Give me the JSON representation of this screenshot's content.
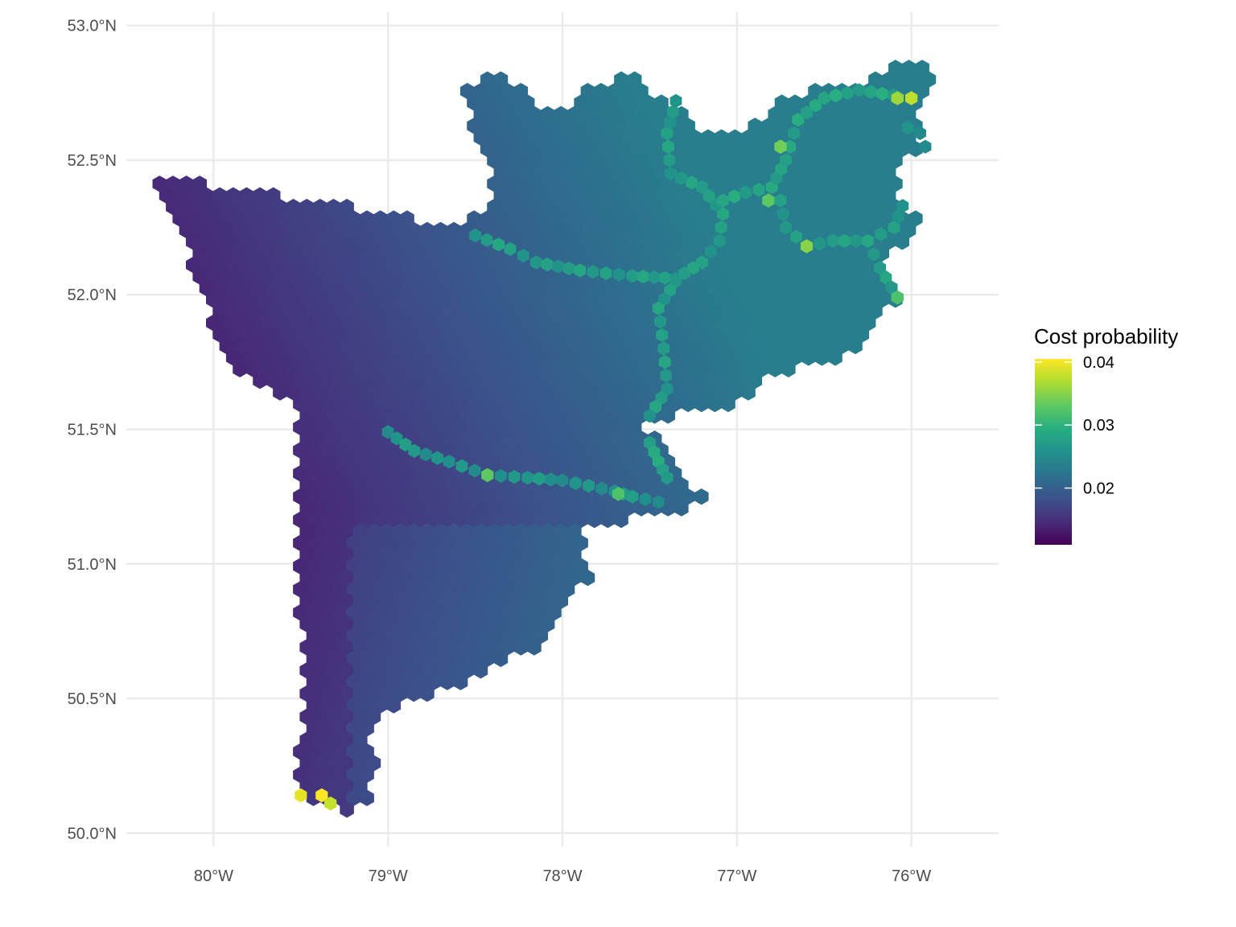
{
  "chart_data": {
    "type": "heatmap",
    "geometry": "hexbin-map",
    "xlim": [
      -80.5,
      -75.5
    ],
    "ylim": [
      49.95,
      53.05
    ],
    "x_ticks": [
      {
        "value": -80,
        "label": "80°W"
      },
      {
        "value": -79,
        "label": "79°W"
      },
      {
        "value": -78,
        "label": "78°W"
      },
      {
        "value": -77,
        "label": "77°W"
      },
      {
        "value": -76,
        "label": "76°W"
      }
    ],
    "y_ticks": [
      {
        "value": 50.0,
        "label": "50.0°N"
      },
      {
        "value": 50.5,
        "label": "50.5°N"
      },
      {
        "value": 51.0,
        "label": "51.0°N"
      },
      {
        "value": 51.5,
        "label": "51.5°N"
      },
      {
        "value": 52.0,
        "label": "52.0°N"
      },
      {
        "value": 52.5,
        "label": "52.5°N"
      },
      {
        "value": 53.0,
        "label": "53.0°N"
      }
    ],
    "grid": true,
    "legend": {
      "title": "Cost probability",
      "placement": "right",
      "range": [
        0.011,
        0.0405
      ],
      "ticks": [
        {
          "value": 0.02,
          "label": "0.02"
        },
        {
          "value": 0.03,
          "label": "0.03"
        },
        {
          "value": 0.04,
          "label": "0.04"
        }
      ]
    },
    "colormap": [
      "#440154",
      "#472d7b",
      "#3b528b",
      "#2c728e",
      "#21918c",
      "#28ae80",
      "#5ec962",
      "#addc30",
      "#fde725"
    ],
    "region_outline": [
      [
        -80.33,
        52.43
      ],
      [
        -80.18,
        52.43
      ],
      [
        -80.0,
        52.41
      ],
      [
        -79.8,
        52.39
      ],
      [
        -79.6,
        52.37
      ],
      [
        -79.4,
        52.35
      ],
      [
        -79.2,
        52.33
      ],
      [
        -79.0,
        52.3
      ],
      [
        -78.8,
        52.28
      ],
      [
        -78.6,
        52.28
      ],
      [
        -78.45,
        52.29
      ],
      [
        -78.4,
        52.35
      ],
      [
        -78.42,
        52.43
      ],
      [
        -78.4,
        52.5
      ],
      [
        -78.52,
        52.58
      ],
      [
        -78.55,
        52.62
      ],
      [
        -78.5,
        52.7
      ],
      [
        -78.6,
        52.75
      ],
      [
        -78.45,
        52.81
      ],
      [
        -78.3,
        52.8
      ],
      [
        -78.2,
        52.73
      ],
      [
        -78.12,
        52.67
      ],
      [
        -77.95,
        52.7
      ],
      [
        -77.8,
        52.79
      ],
      [
        -77.55,
        52.82
      ],
      [
        -77.45,
        52.72
      ],
      [
        -77.28,
        52.7
      ],
      [
        -77.25,
        52.62
      ],
      [
        -77.05,
        52.6
      ],
      [
        -76.85,
        52.66
      ],
      [
        -76.72,
        52.73
      ],
      [
        -76.55,
        52.77
      ],
      [
        -76.4,
        52.78
      ],
      [
        -76.22,
        52.8
      ],
      [
        -76.05,
        52.86
      ],
      [
        -75.92,
        52.85
      ],
      [
        -75.85,
        52.78
      ],
      [
        -75.98,
        52.7
      ],
      [
        -75.95,
        52.6
      ],
      [
        -75.92,
        52.55
      ],
      [
        -76.02,
        52.52
      ],
      [
        -76.1,
        52.45
      ],
      [
        -76.05,
        52.35
      ],
      [
        -75.95,
        52.28
      ],
      [
        -76.0,
        52.2
      ],
      [
        -76.12,
        52.15
      ],
      [
        -76.18,
        52.08
      ],
      [
        -76.08,
        51.99
      ],
      [
        -76.17,
        51.9
      ],
      [
        -76.3,
        51.83
      ],
      [
        -76.35,
        51.77
      ],
      [
        -76.55,
        51.74
      ],
      [
        -76.7,
        51.72
      ],
      [
        -76.82,
        51.69
      ],
      [
        -76.95,
        51.62
      ],
      [
        -77.1,
        51.58
      ],
      [
        -77.35,
        51.55
      ],
      [
        -77.48,
        51.54
      ],
      [
        -77.52,
        51.5
      ],
      [
        -77.45,
        51.45
      ],
      [
        -77.35,
        51.33
      ],
      [
        -77.2,
        51.25
      ],
      [
        -77.35,
        51.18
      ],
      [
        -77.55,
        51.17
      ],
      [
        -77.75,
        51.15
      ],
      [
        -77.85,
        51.13
      ],
      [
        -77.9,
        51.05
      ],
      [
        -77.85,
        50.95
      ],
      [
        -77.95,
        50.9
      ],
      [
        -78.02,
        50.83
      ],
      [
        -78.05,
        50.73
      ],
      [
        -78.15,
        50.68
      ],
      [
        -78.35,
        50.63
      ],
      [
        -78.5,
        50.57
      ],
      [
        -78.65,
        50.55
      ],
      [
        -78.85,
        50.48
      ],
      [
        -79.0,
        50.47
      ],
      [
        -79.05,
        50.42
      ],
      [
        -79.15,
        50.35
      ],
      [
        -79.05,
        50.27
      ],
      [
        -79.12,
        50.2
      ],
      [
        -79.08,
        50.1
      ],
      [
        -79.22,
        50.08
      ],
      [
        -79.38,
        50.1
      ],
      [
        -79.45,
        50.12
      ],
      [
        -79.5,
        50.17
      ],
      [
        -79.52,
        50.25
      ],
      [
        -79.5,
        50.38
      ],
      [
        -79.5,
        50.55
      ],
      [
        -79.5,
        50.75
      ],
      [
        -79.52,
        50.95
      ],
      [
        -79.52,
        51.15
      ],
      [
        -79.53,
        51.35
      ],
      [
        -79.53,
        51.55
      ],
      [
        -79.62,
        51.63
      ],
      [
        -79.78,
        51.68
      ],
      [
        -79.9,
        51.75
      ],
      [
        -80.02,
        51.85
      ],
      [
        -80.05,
        52.0
      ],
      [
        -80.12,
        52.1
      ],
      [
        -80.18,
        52.2
      ],
      [
        -80.28,
        52.3
      ],
      [
        -80.33,
        52.43
      ]
    ],
    "hotspots": [
      {
        "x": -79.5,
        "y": 50.14,
        "value": 0.0395
      },
      {
        "x": -79.38,
        "y": 50.14,
        "value": 0.0405
      },
      {
        "x": -79.33,
        "y": 50.11,
        "value": 0.038
      },
      {
        "x": -78.43,
        "y": 51.33,
        "value": 0.033
      },
      {
        "x": -77.68,
        "y": 51.26,
        "value": 0.032
      },
      {
        "x": -76.75,
        "y": 52.55,
        "value": 0.034
      },
      {
        "x": -76.6,
        "y": 52.18,
        "value": 0.035
      },
      {
        "x": -76.08,
        "y": 51.99,
        "value": 0.032
      },
      {
        "x": -76.08,
        "y": 52.73,
        "value": 0.036
      },
      {
        "x": -76.0,
        "y": 52.73,
        "value": 0.0375
      },
      {
        "x": -76.82,
        "y": 52.35,
        "value": 0.033
      }
    ],
    "paths": [
      {
        "value": 0.026,
        "points": [
          [
            -78.5,
            52.22
          ],
          [
            -78.3,
            52.17
          ],
          [
            -78.15,
            52.12
          ],
          [
            -77.9,
            52.09
          ],
          [
            -77.6,
            52.07
          ],
          [
            -77.35,
            52.06
          ],
          [
            -77.2,
            52.12
          ],
          [
            -77.1,
            52.2
          ],
          [
            -77.08,
            52.3
          ],
          [
            -77.2,
            52.4
          ],
          [
            -77.38,
            52.45
          ],
          [
            -77.4,
            52.6
          ],
          [
            -77.35,
            52.72
          ]
        ]
      },
      {
        "value": 0.026,
        "points": [
          [
            -77.35,
            52.05
          ],
          [
            -77.45,
            51.95
          ],
          [
            -77.42,
            51.8
          ],
          [
            -77.4,
            51.65
          ],
          [
            -77.5,
            51.55
          ]
        ]
      },
      {
        "value": 0.027,
        "points": [
          [
            -77.08,
            52.35
          ],
          [
            -76.95,
            52.38
          ],
          [
            -76.8,
            52.4
          ],
          [
            -76.72,
            52.5
          ],
          [
            -76.65,
            52.65
          ],
          [
            -76.5,
            52.73
          ],
          [
            -76.3,
            52.76
          ],
          [
            -76.1,
            52.74
          ]
        ]
      },
      {
        "value": 0.026,
        "points": [
          [
            -76.75,
            52.35
          ],
          [
            -76.72,
            52.25
          ],
          [
            -76.6,
            52.18
          ],
          [
            -76.45,
            52.2
          ],
          [
            -76.25,
            52.2
          ],
          [
            -76.1,
            52.25
          ],
          [
            -76.05,
            52.33
          ]
        ]
      },
      {
        "value": 0.026,
        "points": [
          [
            -76.25,
            52.2
          ],
          [
            -76.18,
            52.1
          ],
          [
            -76.08,
            51.99
          ]
        ]
      },
      {
        "value": 0.025,
        "points": [
          [
            -79.0,
            51.49
          ],
          [
            -78.85,
            51.42
          ],
          [
            -78.65,
            51.38
          ],
          [
            -78.43,
            51.33
          ],
          [
            -78.2,
            51.32
          ],
          [
            -78.0,
            51.31
          ],
          [
            -77.85,
            51.29
          ],
          [
            -77.7,
            51.27
          ],
          [
            -77.6,
            51.25
          ],
          [
            -77.45,
            51.23
          ]
        ]
      },
      {
        "value": 0.027,
        "points": [
          [
            -77.5,
            51.45
          ],
          [
            -77.45,
            51.38
          ],
          [
            -77.4,
            51.32
          ]
        ]
      },
      {
        "value": 0.025,
        "points": [
          [
            -76.02,
            52.62
          ],
          [
            -75.95,
            52.6
          ],
          [
            -75.92,
            52.55
          ]
        ]
      }
    ]
  }
}
